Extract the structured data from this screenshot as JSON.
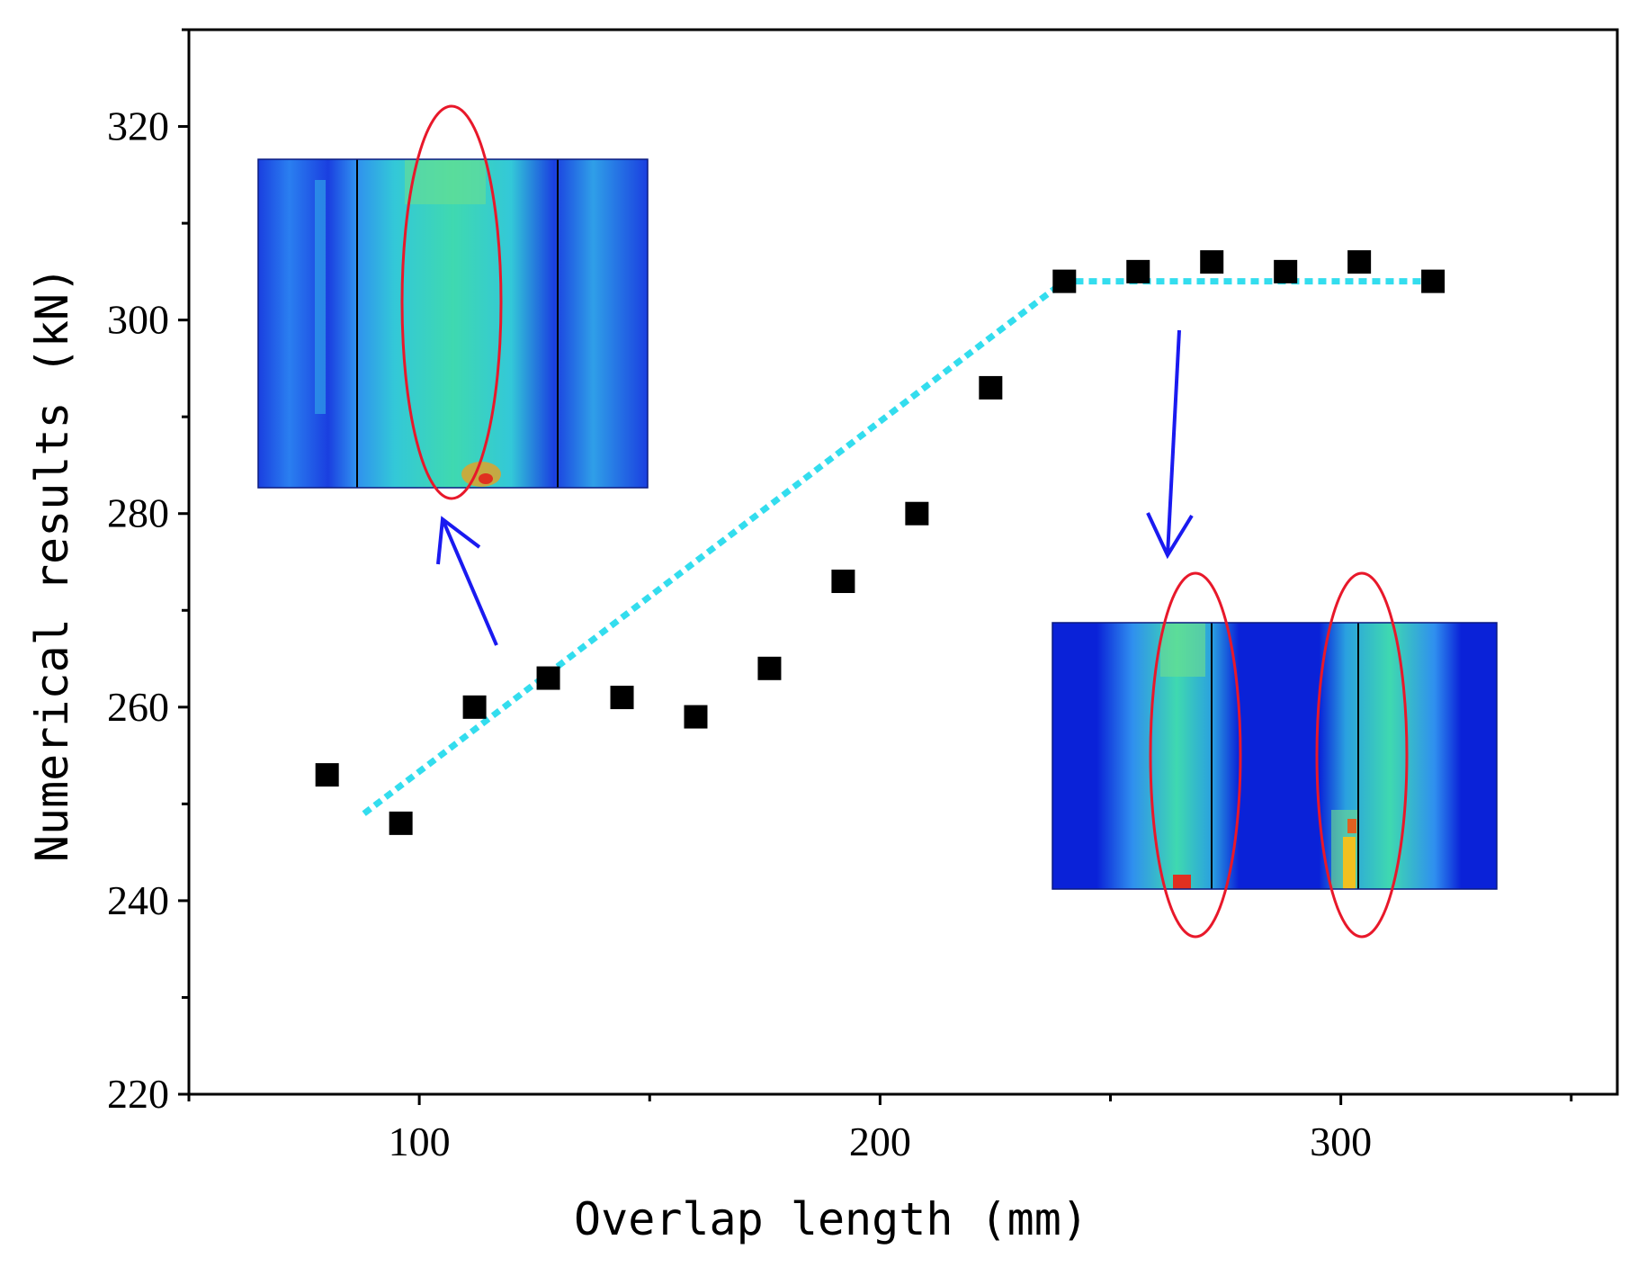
{
  "chart_data": {
    "type": "scatter",
    "xlabel": "Overlap length (mm)",
    "ylabel": "Numerical results (kN)",
    "xlim": [
      50,
      360
    ],
    "ylim": [
      220,
      330
    ],
    "x_ticks": [
      100,
      200,
      300
    ],
    "y_ticks": [
      220,
      240,
      260,
      280,
      300,
      320
    ],
    "grid": false,
    "series": [
      {
        "marker": "square",
        "color": "#000000",
        "points": [
          {
            "x": 80,
            "y": 253
          },
          {
            "x": 96,
            "y": 248
          },
          {
            "x": 112,
            "y": 260
          },
          {
            "x": 128,
            "y": 263
          },
          {
            "x": 144,
            "y": 261
          },
          {
            "x": 160,
            "y": 259
          },
          {
            "x": 176,
            "y": 264
          },
          {
            "x": 192,
            "y": 273
          },
          {
            "x": 208,
            "y": 280
          },
          {
            "x": 224,
            "y": 293
          },
          {
            "x": 240,
            "y": 304
          },
          {
            "x": 256,
            "y": 305
          },
          {
            "x": 272,
            "y": 306
          },
          {
            "x": 288,
            "y": 305
          },
          {
            "x": 304,
            "y": 306
          },
          {
            "x": 320,
            "y": 304
          }
        ]
      }
    ],
    "trend_line": {
      "style": "dotted",
      "color": "#33ddee",
      "points": [
        {
          "x": 88,
          "y": 249
        },
        {
          "x": 240,
          "y": 304
        },
        {
          "x": 320,
          "y": 304
        }
      ]
    },
    "insets": [
      {
        "name": "stress-contour-short-overlap",
        "highlight": "single-ellipse",
        "arrow_to_x": 106
      },
      {
        "name": "stress-contour-long-overlap",
        "highlight": "double-ellipse",
        "arrow_from_x": 265
      }
    ]
  }
}
